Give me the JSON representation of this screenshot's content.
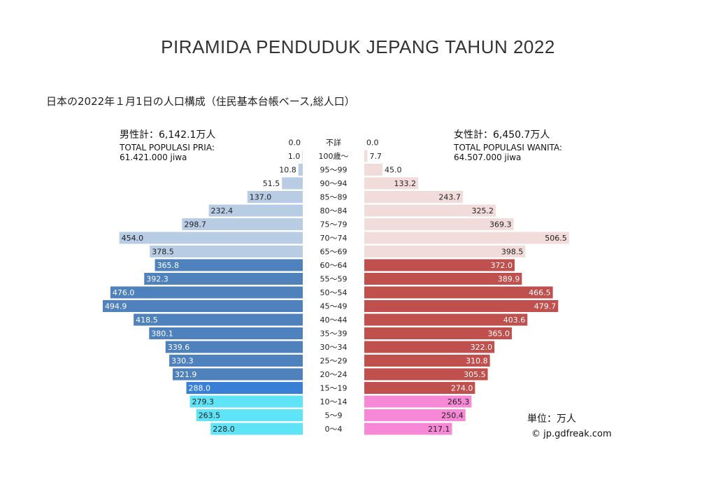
{
  "title": "PIRAMIDA PENDUDUK JEPANG TAHUN 2022",
  "subtitle": "日本の2022年１月1日の人口構成（住民基本台帳ベース,総人口）",
  "male_total": {
    "jp": "男性計：6,142.1万人",
    "label": "TOTAL POPULASI PRIA:",
    "value": "61.421.000 jiwa"
  },
  "female_total": {
    "jp": "女性計：6,450.7万人",
    "label": "TOTAL POPULASI WANITA:",
    "value": "64.507.000 jiwa"
  },
  "unit": "単位：万人",
  "credit": "© jp.gdfreak.com",
  "colors": {
    "male_elderly": "#b8cce4",
    "male_working": "#4f81bd",
    "male_15_19": "#3a7fd6",
    "male_child": "#5ee3f7",
    "female_elderly": "#f2dcdb",
    "female_working": "#c0504d",
    "female_child": "#f788d6"
  },
  "chart_data": {
    "type": "bar",
    "orientation": "horizontal-pyramid",
    "categories": [
      "不詳",
      "100歳～",
      "95～99",
      "90～94",
      "85～89",
      "80～84",
      "75～79",
      "70～74",
      "65～69",
      "60～64",
      "55～59",
      "50～54",
      "45～49",
      "40～44",
      "35～39",
      "30～34",
      "25～29",
      "20～24",
      "15～19",
      "10～14",
      "5～9",
      "0～4"
    ],
    "series": [
      {
        "side": "left",
        "values": [
          0.0,
          1.0,
          10.8,
          51.5,
          137.0,
          232.4,
          298.7,
          454.0,
          378.5,
          365.8,
          392.3,
          476.0,
          494.9,
          418.5,
          380.1,
          339.6,
          330.3,
          321.9,
          288.0,
          279.3,
          263.5,
          228.0
        ]
      },
      {
        "side": "right",
        "values": [
          0.0,
          7.7,
          45.0,
          133.2,
          243.7,
          325.2,
          369.3,
          506.5,
          398.5,
          372.0,
          389.9,
          466.5,
          479.7,
          403.6,
          365.0,
          322.0,
          310.8,
          305.5,
          274.0,
          265.3,
          250.4,
          217.1
        ]
      }
    ],
    "value_labels": {
      "male": [
        "0.0",
        "1.0",
        "10.8",
        "51.5",
        "137.0",
        "232.4",
        "298.7",
        "454.0",
        "378.5",
        "365.8",
        "392.3",
        "476.0",
        "494.9",
        "418.5",
        "380.1",
        "339.6",
        "330.3",
        "321.9",
        "288.0",
        "279.3",
        "263.5",
        "228.0"
      ],
      "female": [
        "0.0",
        "7.7",
        "45.0",
        "133.2",
        "243.7",
        "325.2",
        "369.3",
        "506.5",
        "398.5",
        "372.0",
        "389.9",
        "466.5",
        "479.7",
        "403.6",
        "365.0",
        "322.0",
        "310.8",
        "305.5",
        "274.0",
        "265.3",
        "250.4",
        "217.1"
      ]
    },
    "color_groups": {
      "male": [
        "male_elderly",
        "male_elderly",
        "male_elderly",
        "male_elderly",
        "male_elderly",
        "male_elderly",
        "male_elderly",
        "male_elderly",
        "male_elderly",
        "male_working",
        "male_working",
        "male_working",
        "male_working",
        "male_working",
        "male_working",
        "male_working",
        "male_working",
        "male_working",
        "male_15_19",
        "male_child",
        "male_child",
        "male_child"
      ],
      "female": [
        "female_elderly",
        "female_elderly",
        "female_elderly",
        "female_elderly",
        "female_elderly",
        "female_elderly",
        "female_elderly",
        "female_elderly",
        "female_elderly",
        "female_working",
        "female_working",
        "female_working",
        "female_working",
        "female_working",
        "female_working",
        "female_working",
        "female_working",
        "female_working",
        "female_working",
        "female_child",
        "female_child",
        "female_child"
      ]
    }
  }
}
